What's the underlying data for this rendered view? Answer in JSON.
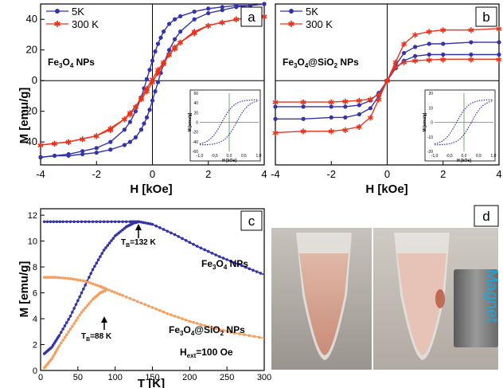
{
  "colors": {
    "blue": "#3333aa",
    "red": "#e8341c",
    "orange": "#f4a060",
    "olive": "#4a9a4a"
  },
  "chart_data": [
    {
      "panel": "a",
      "type": "line",
      "xlabel": "H [kOe]",
      "ylabel": "M [emu/g]",
      "xlim": [
        -4,
        4
      ],
      "ylim": [
        -55,
        50
      ],
      "xticks": [
        -4,
        -2,
        0,
        2,
        4
      ],
      "yticks": [
        -40,
        -20,
        0,
        20,
        40
      ],
      "annotation_text": "Fe",
      "annotation_sub1": "3",
      "annotation_mid": "O",
      "annotation_sub2": "4",
      "annotation_end": " NPs",
      "series": [
        {
          "name": "5K",
          "color": "#3333aa",
          "marker": "circle",
          "x": [
            -4,
            -3.5,
            -3,
            -2.5,
            -2,
            -1.5,
            -1,
            -0.8,
            -0.6,
            -0.4,
            -0.3,
            -0.2,
            -0.1,
            0,
            0.1,
            0.2,
            0.3,
            0.4,
            0.6,
            0.8,
            1,
            1.5,
            2,
            2.5,
            3,
            3.5,
            4
          ],
          "y": [
            -50,
            -49,
            -48,
            -46,
            -44,
            -40,
            -32,
            -27,
            -20,
            -11,
            -5,
            1,
            7,
            13,
            19,
            24,
            28,
            32,
            37,
            40,
            42,
            45,
            47,
            48,
            49,
            49,
            50
          ]
        },
        {
          "name": "300 K",
          "color": "#e8341c",
          "marker": "x",
          "x": [
            -4,
            -3.5,
            -3,
            -2.5,
            -2,
            -1.5,
            -1,
            -0.8,
            -0.6,
            -0.4,
            -0.2,
            0,
            0.2,
            0.4,
            0.6,
            0.8,
            1,
            1.5,
            2,
            2.5,
            3,
            3.5,
            4
          ],
          "y": [
            -42,
            -41,
            -40,
            -38,
            -36,
            -32,
            -25,
            -22,
            -17,
            -11,
            -5,
            1,
            7,
            12,
            17,
            21,
            25,
            31,
            36,
            38,
            40,
            41,
            42
          ]
        }
      ],
      "inset": {
        "xlabel": "H [kOe]",
        "ylabel": "M [emu/g]",
        "xlim": [
          -1,
          1
        ],
        "ylim": [
          -60,
          60
        ],
        "xticks": [
          "-1,0",
          "-0,5",
          "0,0",
          "0,5",
          "1,0"
        ],
        "yticks": [
          "60",
          "40",
          "20",
          "0",
          "-20",
          "-40",
          "-60"
        ]
      }
    },
    {
      "panel": "b",
      "type": "line",
      "xlabel": "H [kOe]",
      "ylabel": "",
      "xlim": [
        -4,
        4
      ],
      "ylim": [
        -55,
        50
      ],
      "xticks": [
        -4,
        -2,
        0,
        2,
        4
      ],
      "annotation_text": "Fe",
      "annotation_sub1": "3",
      "annotation_mid": "O",
      "annotation_sub2": "4",
      "annotation_end": "@SiO",
      "annotation_sub3": "2",
      "annotation_tail": " NPs",
      "series": [
        {
          "name": "5K",
          "color": "#3333aa",
          "marker": "circle",
          "x": [
            -4,
            -3,
            -2,
            -1.5,
            -1,
            -0.6,
            -0.3,
            0,
            0.3,
            0.6,
            1,
            1.5,
            2,
            3,
            4
          ],
          "y": [
            -25,
            -25,
            -24,
            -24,
            -22,
            -18,
            -10,
            0,
            8,
            13,
            16,
            17,
            17,
            17,
            17
          ]
        },
        {
          "name": "300 K",
          "color": "#e8341c",
          "marker": "x",
          "x": [
            -4,
            -3,
            -2,
            -1.5,
            -1,
            -0.6,
            -0.3,
            0,
            0.3,
            0.6,
            1,
            1.5,
            2,
            3,
            4
          ],
          "y": [
            -34,
            -33,
            -33,
            -32,
            -30,
            -24,
            -12,
            0,
            9,
            12,
            13,
            13.5,
            14,
            14,
            14
          ]
        }
      ],
      "inset": {
        "xlabel": "H [kOe]",
        "ylabel": "M [emu/g]",
        "xlim": [
          -1,
          1
        ],
        "ylim": [
          -20,
          20
        ],
        "xticks": [
          "-1,0",
          "-0,5",
          "0,0",
          "0,5",
          "1,0"
        ],
        "yticks": [
          "20",
          "10",
          "0",
          "-10",
          "-20"
        ]
      }
    },
    {
      "panel": "c",
      "type": "line",
      "xlabel": "T [K]",
      "ylabel": "M [emu/g]",
      "xlim": [
        0,
        300
      ],
      "ylim": [
        0,
        12.5
      ],
      "xticks": [
        0,
        50,
        100,
        150,
        200,
        250,
        300
      ],
      "yticks": [
        0,
        2,
        4,
        6,
        8,
        10,
        12
      ],
      "series": [
        {
          "name": "Fe3O4 FC",
          "color": "#3333aa",
          "x": [
            5,
            30,
            60,
            90,
            120,
            132,
            150,
            180,
            210,
            240,
            270,
            300
          ],
          "y": [
            11.5,
            11.5,
            11.5,
            11.5,
            11.5,
            11.5,
            11.3,
            10.5,
            9.6,
            8.8,
            8.1,
            7.4
          ]
        },
        {
          "name": "Fe3O4 ZFC",
          "color": "#3333aa",
          "x": [
            5,
            15,
            25,
            40,
            55,
            70,
            85,
            100,
            115,
            125,
            132
          ],
          "y": [
            1.3,
            1.8,
            2.7,
            4.2,
            6.0,
            7.8,
            9.3,
            10.4,
            11.1,
            11.4,
            11.5
          ]
        },
        {
          "name": "Fe3O4@SiO2 FC",
          "color": "#f4a060",
          "x": [
            5,
            20,
            40,
            60,
            80,
            88,
            110,
            140,
            170,
            200,
            230,
            260,
            300
          ],
          "y": [
            7.2,
            7.2,
            7.1,
            6.9,
            6.5,
            6.3,
            5.8,
            5.1,
            4.4,
            3.8,
            3.3,
            2.9,
            2.5
          ]
        },
        {
          "name": "Fe3O4@SiO2 ZFC",
          "color": "#f4a060",
          "x": [
            5,
            15,
            25,
            40,
            55,
            70,
            80,
            88
          ],
          "y": [
            0.2,
            0.9,
            1.9,
            3.2,
            4.5,
            5.5,
            6.0,
            6.2
          ]
        }
      ],
      "label_fe3o4_a": "Fe",
      "label_fe3o4_s1": "3",
      "label_fe3o4_b": "O",
      "label_fe3o4_s2": "4",
      "label_fe3o4_c": " NPs",
      "label_si_a": "Fe",
      "label_si_s1": "3",
      "label_si_b": "O",
      "label_si_s2": "4",
      "label_si_c": "@SiO",
      "label_si_s3": "2",
      "label_si_d": " NPs",
      "tb1_a": "T",
      "tb1_sub": "B",
      "tb1_b": "=132 K",
      "tb2_a": "T",
      "tb2_sub": "B",
      "tb2_b": "=88 K",
      "hext_a": "H",
      "hext_sub": "ext",
      "hext_b": "=100 Oe"
    }
  ],
  "panels": {
    "a": "a",
    "b": "b",
    "c": "c",
    "d": "d"
  },
  "photo": {
    "magnet_text": "Magnet"
  }
}
